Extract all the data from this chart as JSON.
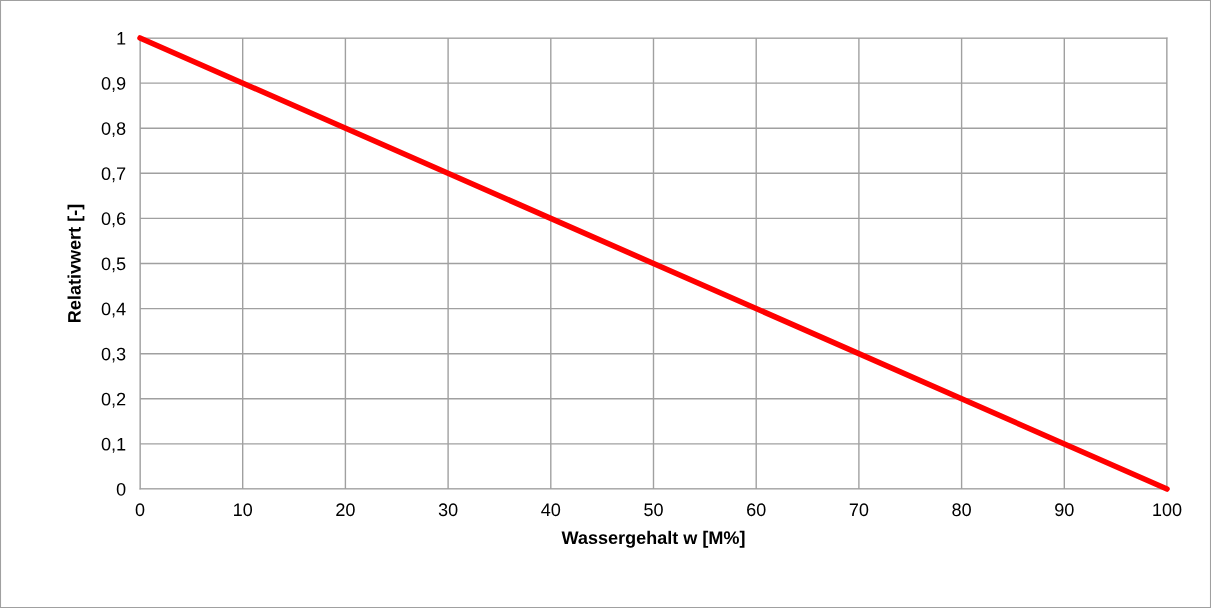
{
  "chart_data": {
    "type": "line",
    "xlabel": "Wassergehalt w [M%]",
    "ylabel": "Relativwert [-]",
    "x": [
      0,
      100
    ],
    "series": [
      {
        "color": "#ff0000",
        "values": [
          1,
          0
        ]
      }
    ],
    "xlim": [
      0,
      100
    ],
    "xticks": [
      0,
      10,
      20,
      30,
      40,
      50,
      60,
      70,
      80,
      90,
      100
    ],
    "ylim": [
      0,
      1
    ],
    "yticks": [
      0,
      {
        "value": 0.1,
        "label": "0,1"
      },
      {
        "value": 0.2,
        "label": "0,2"
      },
      {
        "value": 0.3,
        "label": "0,3"
      },
      {
        "value": 0.4,
        "label": "0,4"
      },
      {
        "value": 0.5,
        "label": "0,5"
      },
      {
        "value": 0.6,
        "label": "0,6"
      },
      {
        "value": 0.7,
        "label": "0,7"
      },
      {
        "value": 0.8,
        "label": "0,8"
      },
      {
        "value": 0.9,
        "label": "0,9"
      },
      1
    ],
    "grid": true,
    "marker": "none",
    "line_style": "solid"
  }
}
